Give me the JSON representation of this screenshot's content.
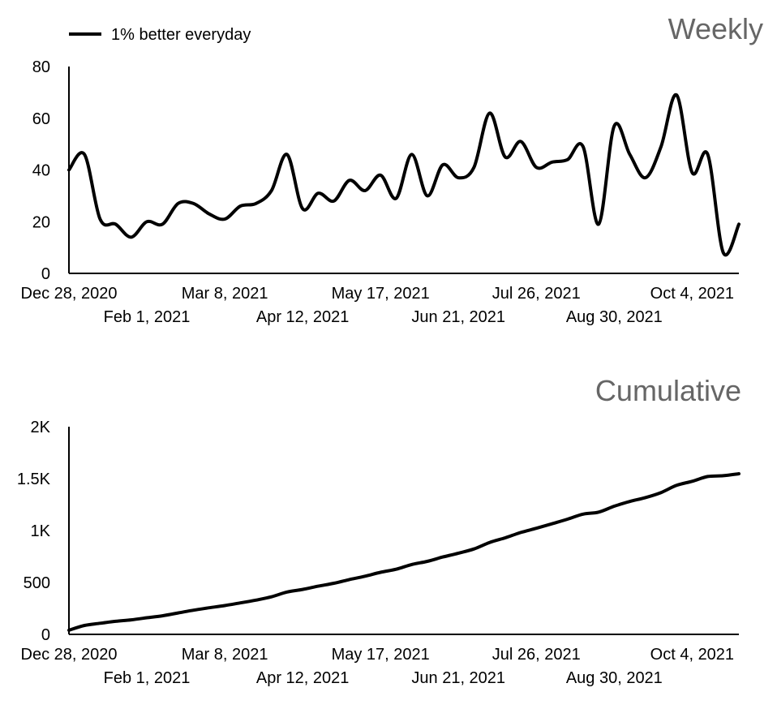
{
  "legend": {
    "label": "1% better everyday"
  },
  "chart_data": [
    {
      "type": "line",
      "title": "Weekly",
      "series": [
        {
          "name": "1% better everyday",
          "values": [
            40,
            46,
            21,
            19,
            14,
            20,
            19,
            27,
            27,
            23,
            21,
            26,
            27,
            32,
            46,
            25,
            31,
            28,
            36,
            32,
            38,
            29,
            46,
            30,
            42,
            37,
            41,
            62,
            45,
            51,
            41,
            43,
            44,
            49,
            19,
            57,
            46,
            37,
            49,
            69,
            39,
            46,
            8,
            19
          ]
        }
      ],
      "ylim": [
        0,
        80
      ],
      "yticks": [
        0,
        20,
        40,
        60,
        80
      ],
      "ytick_labels": [
        "0",
        "20",
        "40",
        "60",
        "80"
      ],
      "xtick_labels": [
        "Dec 28, 2020",
        "Feb 1, 2021",
        "Mar 8, 2021",
        "Apr 12, 2021",
        "May 17, 2021",
        "Jun 21, 2021",
        "Jul 26, 2021",
        "Aug 30, 2021",
        "Oct 4, 2021"
      ],
      "xtick_index": [
        0,
        5,
        10,
        15,
        20,
        25,
        30,
        35,
        40
      ]
    },
    {
      "type": "line",
      "title": "Cumulative",
      "series": [
        {
          "name": "1% better everyday",
          "values": [
            40,
            86,
            107,
            126,
            140,
            160,
            179,
            206,
            233,
            256,
            277,
            303,
            330,
            362,
            408,
            433,
            464,
            492,
            528,
            560,
            598,
            627,
            673,
            703,
            745,
            782,
            823,
            885,
            930,
            981,
            1022,
            1065,
            1109,
            1158,
            1177,
            1234,
            1280,
            1317,
            1366,
            1435,
            1474,
            1520,
            1528,
            1547
          ]
        }
      ],
      "ylim": [
        0,
        2000
      ],
      "yticks": [
        0,
        500,
        1000,
        1500,
        2000
      ],
      "ytick_labels": [
        "0",
        "500",
        "1K",
        "1.5K",
        "2K"
      ],
      "xtick_labels": [
        "Dec 28, 2020",
        "Feb 1, 2021",
        "Mar 8, 2021",
        "Apr 12, 2021",
        "May 17, 2021",
        "Jun 21, 2021",
        "Jul 26, 2021",
        "Aug 30, 2021",
        "Oct 4, 2021"
      ],
      "xtick_index": [
        0,
        5,
        10,
        15,
        20,
        25,
        30,
        35,
        40
      ]
    }
  ]
}
